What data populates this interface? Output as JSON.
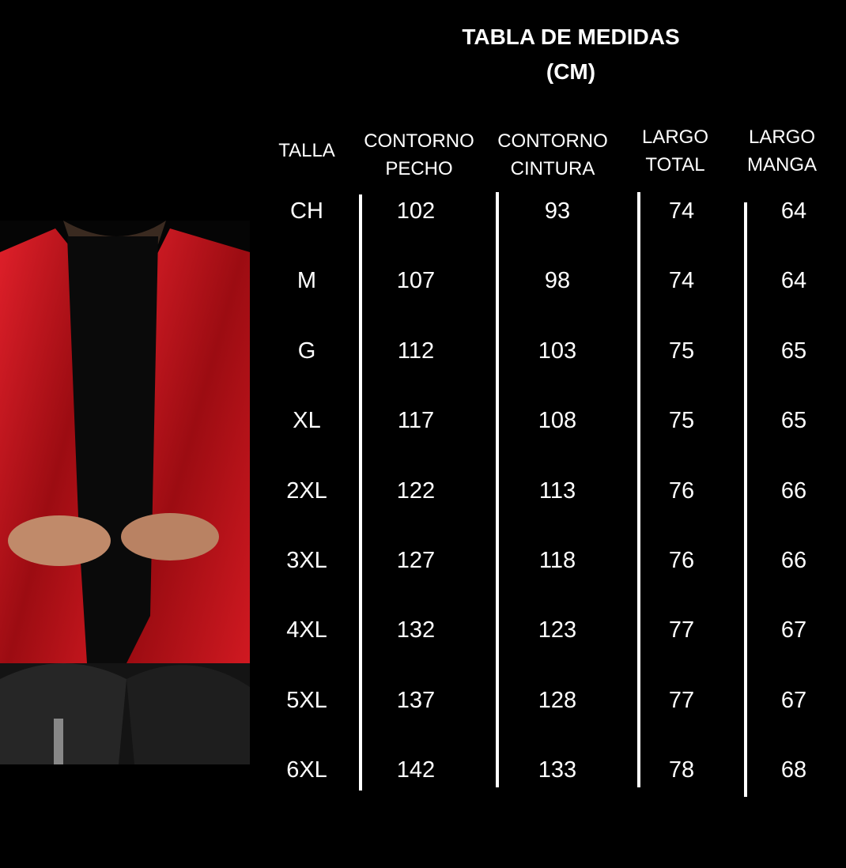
{
  "title_line1": "TABLA DE MEDIDAS",
  "title_line2": "(CM)",
  "headers": [
    {
      "l1": "TALLA",
      "l2": ""
    },
    {
      "l1": "CONTORNO",
      "l2": "PECHO"
    },
    {
      "l1": "CONTORNO",
      "l2": "CINTURA"
    },
    {
      "l1": "LARGO",
      "l2": "TOTAL"
    },
    {
      "l1": "LARGO",
      "l2": "MANGA"
    }
  ],
  "rows": [
    [
      "CH",
      "102",
      "93",
      "74",
      "64"
    ],
    [
      "M",
      "107",
      "98",
      "74",
      "64"
    ],
    [
      "G",
      "112",
      "103",
      "75",
      "65"
    ],
    [
      "XL",
      "117",
      "108",
      "75",
      "65"
    ],
    [
      "2XL",
      "122",
      "113",
      "76",
      "66"
    ],
    [
      "3XL",
      "127",
      "118",
      "76",
      "66"
    ],
    [
      "4XL",
      "132",
      "123",
      "77",
      "67"
    ],
    [
      "5XL",
      "137",
      "128",
      "77",
      "67"
    ],
    [
      "6XL",
      "142",
      "133",
      "78",
      "68"
    ]
  ],
  "colors": {
    "background": "#000000",
    "text": "#ffffff",
    "jacket": "#c8141c"
  }
}
